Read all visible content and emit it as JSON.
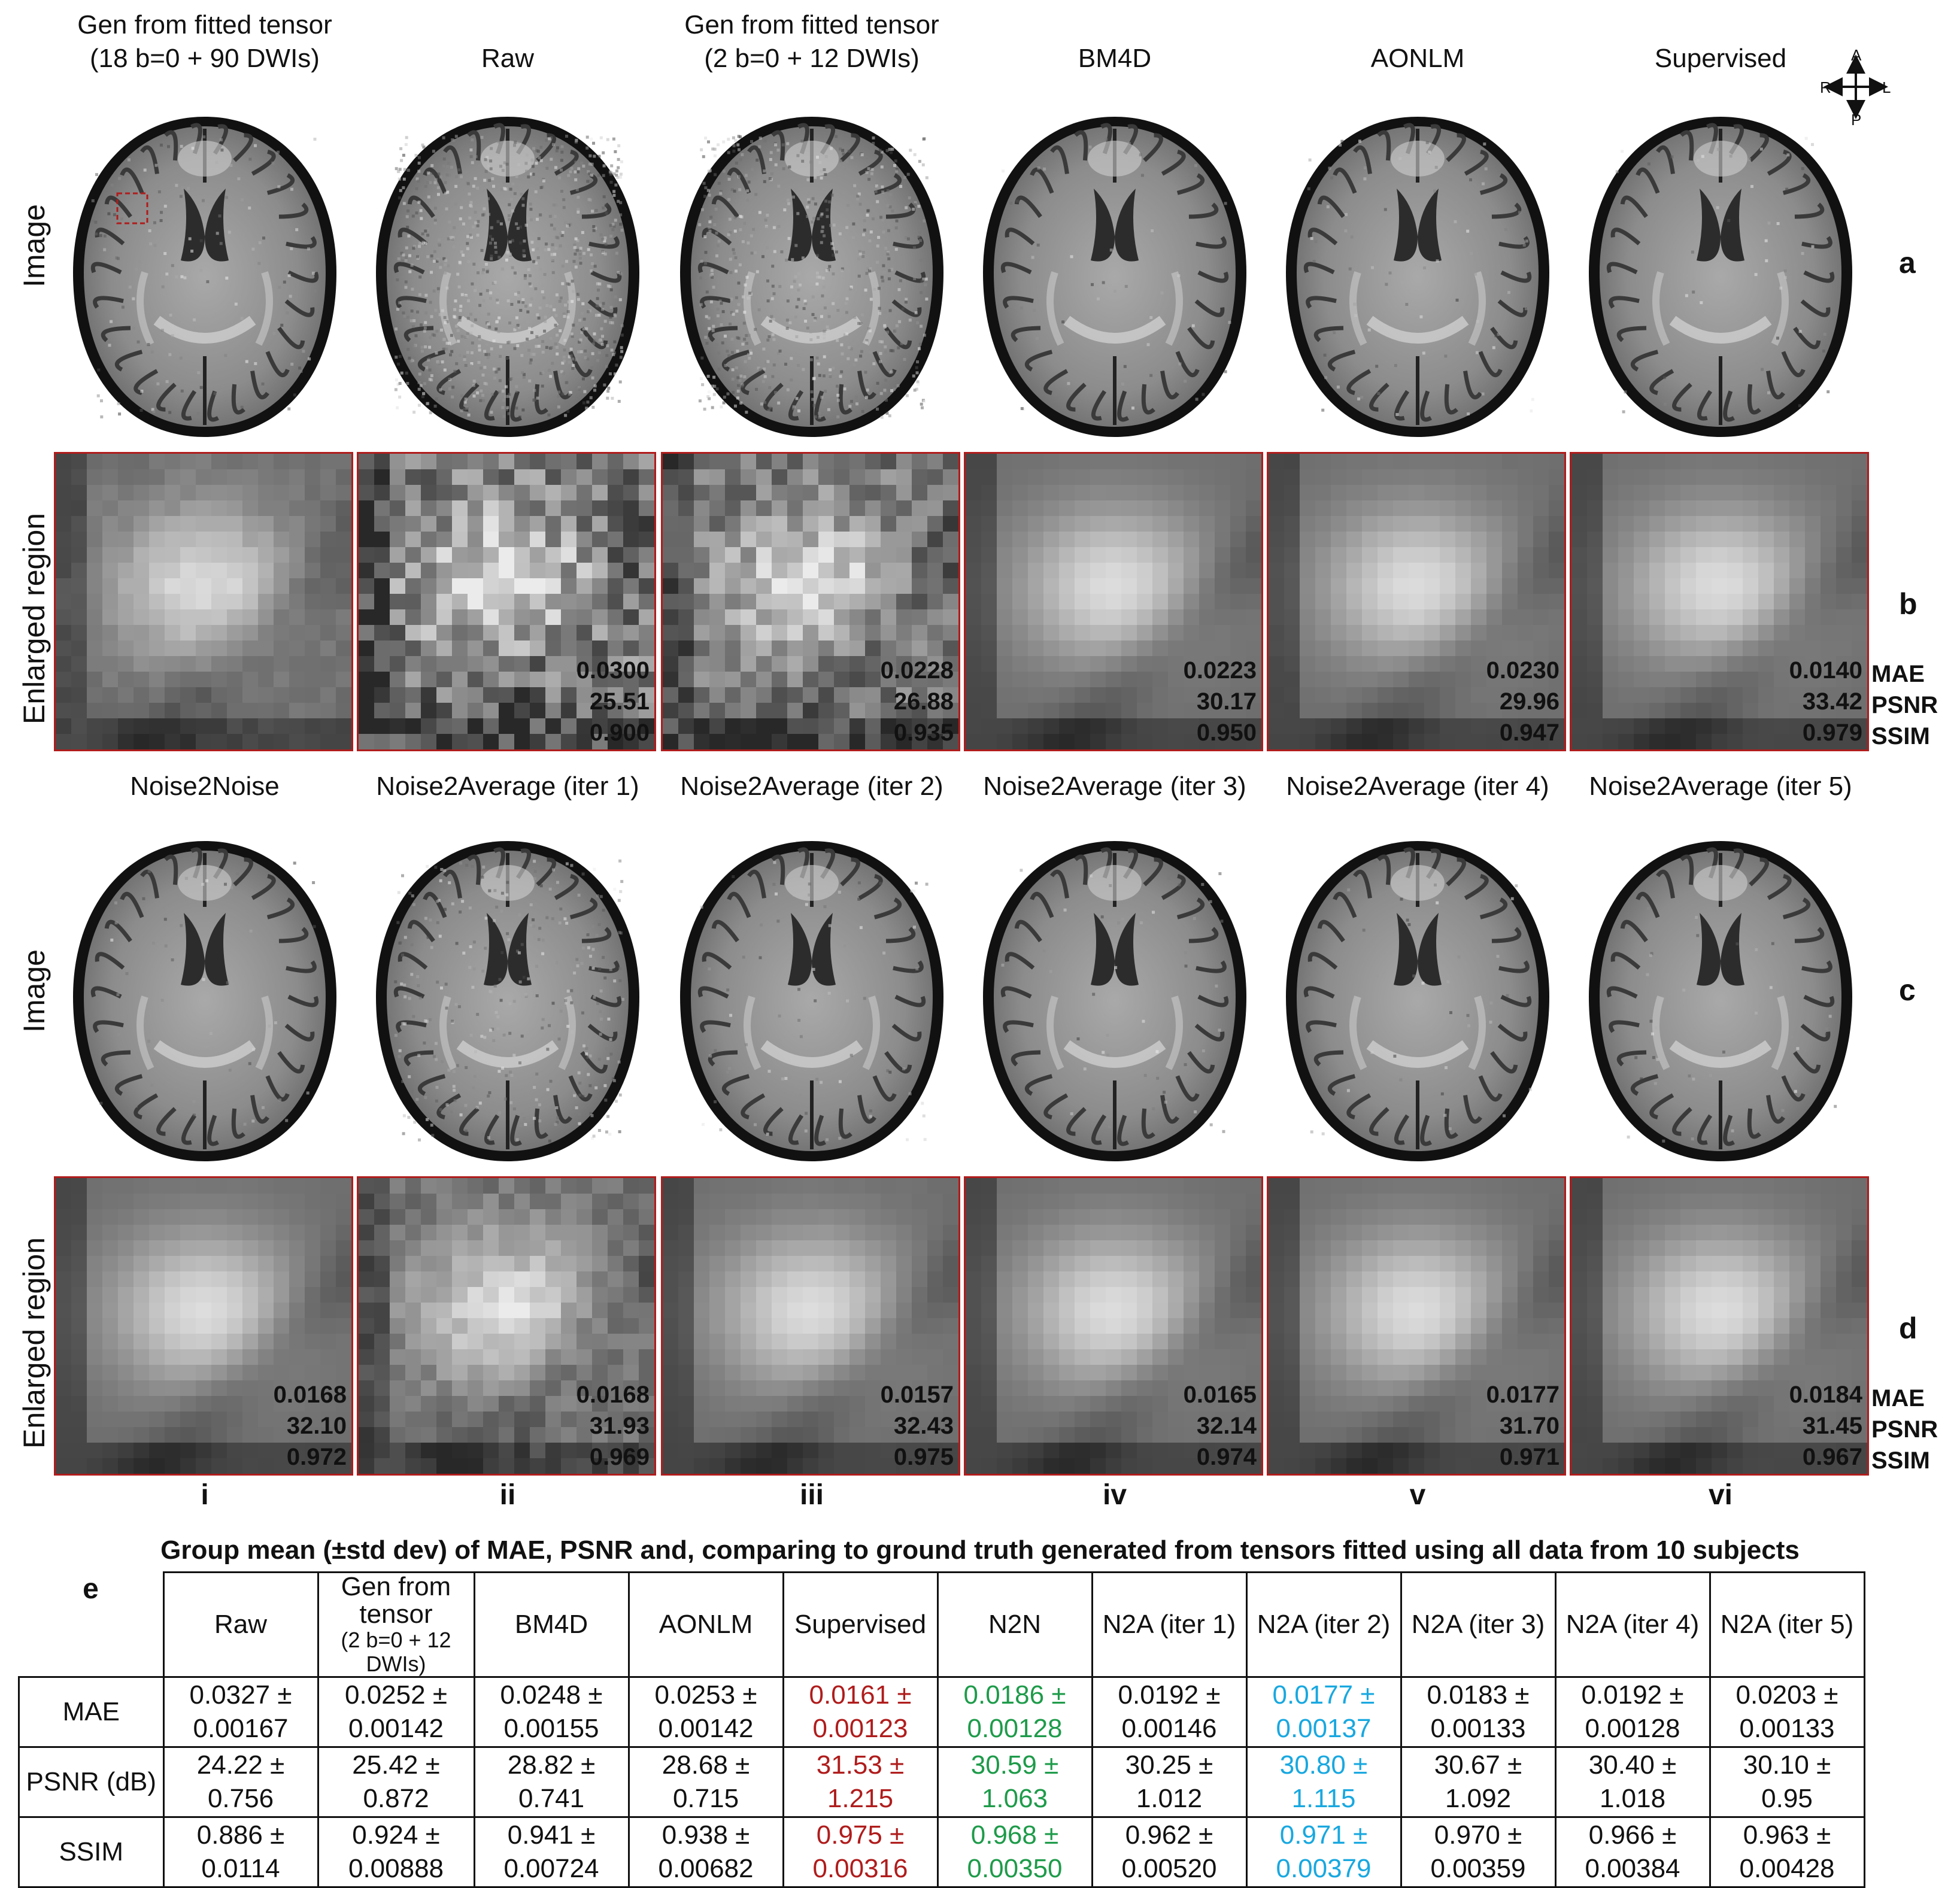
{
  "column_titles_top": [
    [
      "Gen from fitted tensor",
      "(18 b=0 + 90 DWIs)"
    ],
    [
      "Raw",
      ""
    ],
    [
      "Gen from fitted tensor",
      "(2 b=0 + 12 DWIs)"
    ],
    [
      "BM4D",
      ""
    ],
    [
      "AONLM",
      ""
    ],
    [
      "Supervised",
      ""
    ]
  ],
  "column_titles_bottom": [
    "Noise2Noise",
    "Noise2Average (iter 1)",
    "Noise2Average (iter 2)",
    "Noise2Average (iter 3)",
    "Noise2Average (iter 4)",
    "Noise2Average (iter 5)"
  ],
  "row_labels": {
    "image": "Image",
    "enlarged": "Enlarged region"
  },
  "panel_letters": [
    "a",
    "b",
    "c",
    "d",
    "e"
  ],
  "orientation": {
    "a": "A",
    "p": "P",
    "r": "R",
    "l": "L"
  },
  "metric_labels": [
    "MAE",
    "PSNR",
    "SSIM"
  ],
  "metrics_top": [
    null,
    [
      "0.0300",
      "25.51",
      "0.900"
    ],
    [
      "0.0228",
      "26.88",
      "0.935"
    ],
    [
      "0.0223",
      "30.17",
      "0.950"
    ],
    [
      "0.0230",
      "29.96",
      "0.947"
    ],
    [
      "0.0140",
      "33.42",
      "0.979"
    ]
  ],
  "metrics_bottom": [
    [
      "0.0168",
      "32.10",
      "0.972"
    ],
    [
      "0.0168",
      "31.93",
      "0.969"
    ],
    [
      "0.0157",
      "32.43",
      "0.975"
    ],
    [
      "0.0165",
      "32.14",
      "0.974"
    ],
    [
      "0.0177",
      "31.70",
      "0.971"
    ],
    [
      "0.0184",
      "31.45",
      "0.967"
    ]
  ],
  "roman_numerals": [
    "i",
    "ii",
    "iii",
    "iv",
    "v",
    "vi"
  ],
  "table": {
    "title": "Group mean (±std dev) of MAE, PSNR and, comparing to ground truth generated from tensors fitted using all data from 10 subjects",
    "corner": "e",
    "headers": [
      "Raw",
      "Gen from tensor",
      "BM4D",
      "AONLM",
      "Supervised",
      "N2N",
      "N2A (iter 1)",
      "N2A (iter 2)",
      "N2A (iter 3)",
      "N2A (iter 4)",
      "N2A (iter 5)"
    ],
    "header_sub": "(2 b=0 + 12 DWIs)",
    "rows": [
      {
        "label": "MAE",
        "cells": [
          [
            "0.0327 ±",
            "0.00167"
          ],
          [
            "0.0252 ±",
            "0.00142"
          ],
          [
            "0.0248 ±",
            "0.00155"
          ],
          [
            "0.0253 ±",
            "0.00142"
          ],
          [
            "0.0161 ±",
            "0.00123"
          ],
          [
            "0.0186 ±",
            "0.00128"
          ],
          [
            "0.0192 ±",
            "0.00146"
          ],
          [
            "0.0177 ±",
            "0.00137"
          ],
          [
            "0.0183 ±",
            "0.00133"
          ],
          [
            "0.0192 ±",
            "0.00128"
          ],
          [
            "0.0203 ±",
            "0.00133"
          ]
        ]
      },
      {
        "label": "PSNR (dB)",
        "cells": [
          [
            "24.22 ±",
            "0.756"
          ],
          [
            "25.42 ±",
            "0.872"
          ],
          [
            "28.82 ±",
            "0.741"
          ],
          [
            "28.68 ±",
            "0.715"
          ],
          [
            "31.53 ±",
            "1.215"
          ],
          [
            "30.59 ±",
            "1.063"
          ],
          [
            "30.25 ±",
            "1.012"
          ],
          [
            "30.80 ±",
            "1.115"
          ],
          [
            "30.67 ±",
            "1.092"
          ],
          [
            "30.40 ±",
            "1.018"
          ],
          [
            "30.10 ±",
            "0.95"
          ]
        ]
      },
      {
        "label": "SSIM",
        "cells": [
          [
            "0.886 ±",
            "0.0114"
          ],
          [
            "0.924 ±",
            "0.00888"
          ],
          [
            "0.941 ±",
            "0.00724"
          ],
          [
            "0.938 ±",
            "0.00682"
          ],
          [
            "0.975 ±",
            "0.00316"
          ],
          [
            "0.968 ±",
            "0.00350"
          ],
          [
            "0.962 ±",
            "0.00520"
          ],
          [
            "0.971 ±",
            "0.00379"
          ],
          [
            "0.970 ±",
            "0.00359"
          ],
          [
            "0.966 ±",
            "0.00384"
          ],
          [
            "0.963 ±",
            "0.00428"
          ]
        ]
      }
    ],
    "highlight_colors": {
      "supervised": "#b01c1c",
      "n2n": "#1e9b4a",
      "n2a_iter2": "#18a8e0"
    }
  }
}
